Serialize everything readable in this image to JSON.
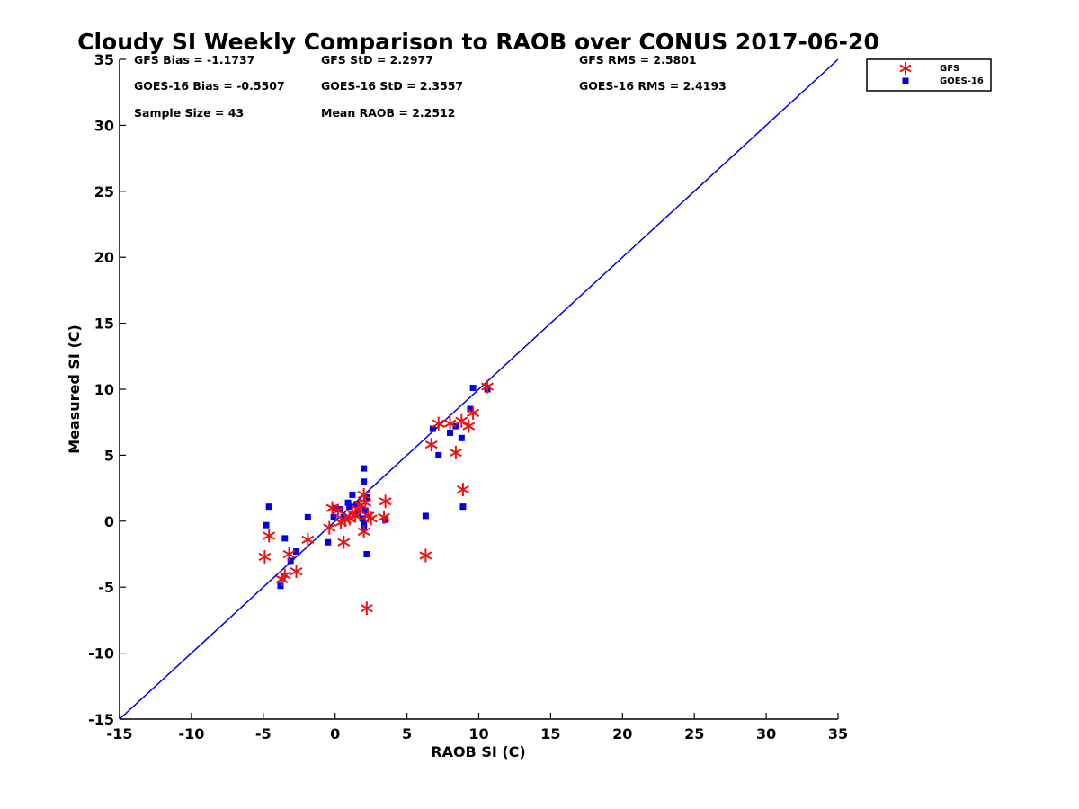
{
  "chart_data": {
    "type": "scatter",
    "title": "Cloudy SI Weekly Comparison to RAOB over CONUS 2017-06-20",
    "xlabel": "RAOB SI (C)",
    "ylabel": "Measured SI (C)",
    "xlim": [
      -15,
      35
    ],
    "ylim": [
      -15,
      35
    ],
    "xticks": [
      "-15",
      "-10",
      "-5",
      "0",
      "5",
      "10",
      "15",
      "20",
      "25",
      "30",
      "35"
    ],
    "yticks": [
      "-15",
      "-10",
      "-5",
      "0",
      "5",
      "10",
      "15",
      "20",
      "25",
      "30",
      "35"
    ],
    "grid": false,
    "legend_position": "top-right",
    "reference_line": {
      "type": "one-to-one",
      "color": "#0000dd"
    },
    "stats": [
      "GFS Bias = -1.1737",
      "GFS StD = 2.2977",
      "GFS RMS = 2.5801",
      "GOES-16 Bias = -0.5507",
      "GOES-16 StD = 2.3557",
      "GOES-16 RMS = 2.4193",
      "Sample Size = 43",
      "Mean RAOB = 2.2512"
    ],
    "series": [
      {
        "name": "GFS",
        "marker": "asterisk",
        "color": "#ee1111",
        "points": [
          [
            -4.9,
            -2.7
          ],
          [
            -4.6,
            -1.1
          ],
          [
            -3.7,
            -4.4
          ],
          [
            -3.5,
            -4.1
          ],
          [
            -3.2,
            -2.5
          ],
          [
            -2.7,
            -3.8
          ],
          [
            -1.9,
            -1.4
          ],
          [
            -0.4,
            -0.5
          ],
          [
            -0.2,
            1.0
          ],
          [
            0.2,
            0.8
          ],
          [
            0.4,
            -0.1
          ],
          [
            0.6,
            -1.6
          ],
          [
            0.7,
            0.1
          ],
          [
            1.0,
            0.2
          ],
          [
            1.2,
            0.6
          ],
          [
            1.4,
            0.4
          ],
          [
            1.6,
            0.9
          ],
          [
            1.8,
            1.2
          ],
          [
            2.0,
            -0.8
          ],
          [
            2.0,
            2.0
          ],
          [
            2.1,
            1.4
          ],
          [
            2.2,
            -6.6
          ],
          [
            2.3,
            0.4
          ],
          [
            2.5,
            0.2
          ],
          [
            3.4,
            0.3
          ],
          [
            3.5,
            1.5
          ],
          [
            6.3,
            -2.6
          ],
          [
            6.7,
            5.8
          ],
          [
            7.2,
            7.4
          ],
          [
            8.0,
            7.4
          ],
          [
            8.4,
            5.2
          ],
          [
            8.8,
            7.6
          ],
          [
            8.9,
            2.4
          ],
          [
            9.3,
            7.2
          ],
          [
            9.6,
            8.2
          ],
          [
            10.6,
            10.2
          ]
        ]
      },
      {
        "name": "GOES-16",
        "marker": "square",
        "color": "#0000ee",
        "points": [
          [
            -4.8,
            -0.3
          ],
          [
            -4.6,
            1.1
          ],
          [
            -3.8,
            -4.9
          ],
          [
            -3.5,
            -1.3
          ],
          [
            -3.1,
            -3.0
          ],
          [
            -2.7,
            -2.3
          ],
          [
            -1.9,
            0.3
          ],
          [
            -0.5,
            -1.6
          ],
          [
            -0.1,
            0.3
          ],
          [
            0.0,
            1.0
          ],
          [
            0.3,
            0.9
          ],
          [
            0.6,
            0.3
          ],
          [
            0.9,
            1.4
          ],
          [
            1.0,
            1.1
          ],
          [
            1.2,
            2.0
          ],
          [
            1.5,
            1.3
          ],
          [
            1.6,
            0.6
          ],
          [
            1.9,
            0.2
          ],
          [
            2.0,
            4.0
          ],
          [
            2.0,
            3.0
          ],
          [
            2.0,
            -0.1
          ],
          [
            2.0,
            -0.5
          ],
          [
            2.1,
            0.8
          ],
          [
            2.2,
            1.8
          ],
          [
            2.2,
            -2.5
          ],
          [
            3.5,
            0.1
          ],
          [
            6.3,
            0.4
          ],
          [
            6.8,
            7.0
          ],
          [
            7.2,
            5.0
          ],
          [
            8.0,
            6.7
          ],
          [
            8.4,
            7.2
          ],
          [
            8.8,
            6.3
          ],
          [
            8.9,
            1.1
          ],
          [
            9.4,
            8.5
          ],
          [
            9.6,
            10.1
          ],
          [
            10.6,
            10.0
          ]
        ]
      }
    ]
  }
}
